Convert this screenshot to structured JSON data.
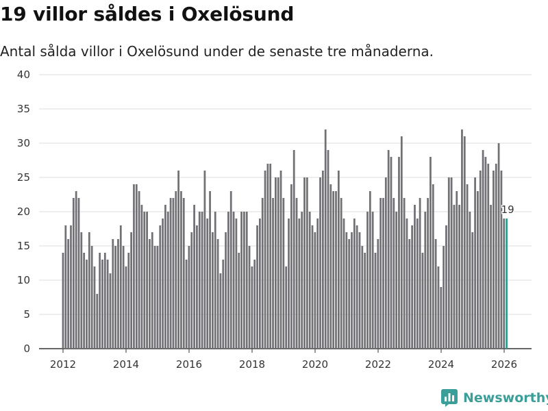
{
  "header": {
    "title": "19 villor såldes i Oxelösund",
    "subtitle": "Antal sålda villor i Oxelösund under de senaste tre månaderna."
  },
  "brand": {
    "name": "Newsworthy",
    "icon": "bar-chart-logo-icon"
  },
  "colors": {
    "bar": "#707075",
    "highlight": "#2a9d8f",
    "grid": "#dddddd",
    "brand": "#3b9e98"
  },
  "chart_data": {
    "type": "bar",
    "title": "19 villor såldes i Oxelösund",
    "xlabel": "",
    "ylabel": "",
    "ylim": [
      0,
      40
    ],
    "yticks": [
      0,
      5,
      10,
      15,
      20,
      25,
      30,
      35,
      40
    ],
    "xticks": [
      2012,
      2014,
      2016,
      2018,
      2020,
      2022,
      2024,
      2026
    ],
    "x_start": 2012.0,
    "x_step": 0.0833,
    "values": [
      14,
      18,
      16,
      18,
      22,
      23,
      22,
      17,
      14,
      13,
      17,
      15,
      12,
      8,
      14,
      13,
      14,
      13,
      11,
      16,
      15,
      16,
      18,
      15,
      12,
      14,
      17,
      24,
      24,
      23,
      21,
      20,
      20,
      16,
      17,
      15,
      15,
      18,
      19,
      21,
      20,
      22,
      22,
      23,
      26,
      23,
      22,
      13,
      15,
      17,
      21,
      18,
      20,
      20,
      26,
      19,
      23,
      17,
      20,
      16,
      11,
      13,
      17,
      20,
      23,
      20,
      19,
      14,
      20,
      20,
      20,
      15,
      12,
      13,
      18,
      19,
      22,
      26,
      27,
      27,
      22,
      25,
      25,
      26,
      22,
      12,
      19,
      24,
      29,
      22,
      19,
      20,
      25,
      25,
      20,
      18,
      17,
      19,
      25,
      26,
      32,
      29,
      24,
      23,
      23,
      26,
      22,
      19,
      17,
      16,
      17,
      19,
      18,
      17,
      15,
      14,
      20,
      23,
      20,
      14,
      16,
      22,
      22,
      25,
      29,
      28,
      22,
      20,
      28,
      31,
      22,
      19,
      16,
      18,
      21,
      19,
      22,
      14,
      20,
      22,
      28,
      24,
      16,
      12,
      9,
      15,
      18,
      25,
      25,
      21,
      23,
      21,
      32,
      31,
      24,
      20,
      17,
      25,
      23,
      26,
      29,
      28,
      27,
      21,
      26,
      27,
      30,
      26,
      19,
      19
    ],
    "highlight": {
      "value": 19,
      "label": "19"
    }
  }
}
